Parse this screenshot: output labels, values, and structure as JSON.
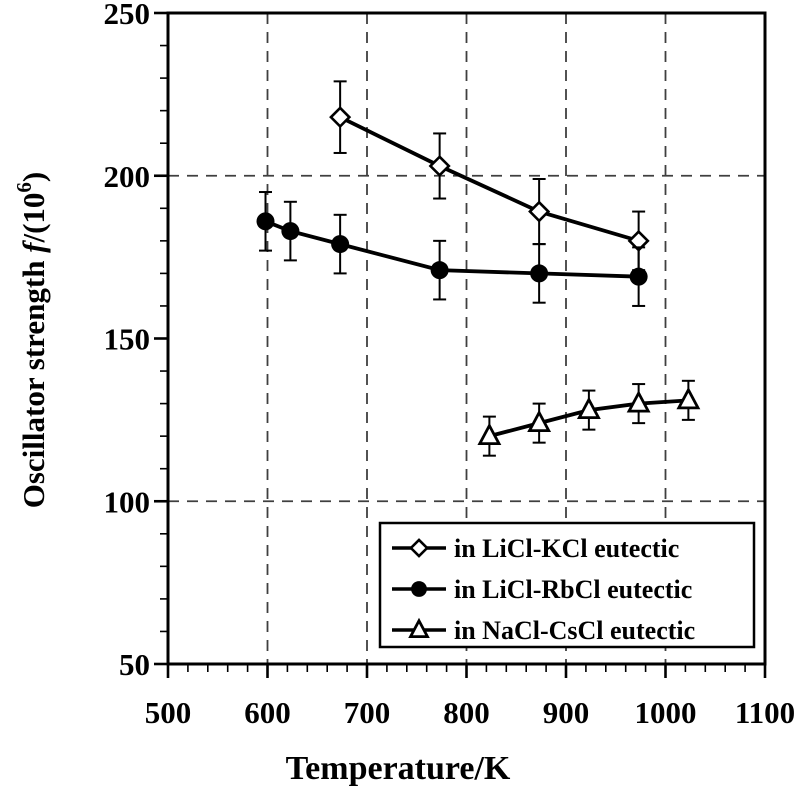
{
  "figure": {
    "background": "#ffffff",
    "ink_color": "#000000",
    "grid_color": "#3f3f3f",
    "marker_fill_open": "#ffffff",
    "legend_background": "#ffffff"
  },
  "chart_data": {
    "type": "line",
    "title": "",
    "xlabel": "Temperature/K",
    "ylabel": "Oscillator strength f/(10^6)",
    "ylabel_parts": [
      {
        "text": "Oscillator strength ",
        "style": "normal"
      },
      {
        "text": "f",
        "style": "italic"
      },
      {
        "text": "/(10",
        "style": "normal"
      },
      {
        "text": "6",
        "style": "superscript"
      },
      {
        "text": ")",
        "style": "normal"
      }
    ],
    "xlim": [
      500,
      1100
    ],
    "ylim": [
      50,
      250
    ],
    "xticks": [
      500,
      600,
      700,
      800,
      900,
      1000,
      1100
    ],
    "yticks": [
      50,
      100,
      150,
      200,
      250
    ],
    "x_minor_step": 20,
    "y_minor_step": 10,
    "grid": "dashed",
    "grid_vertical_at": [
      600,
      700,
      800,
      900,
      1000
    ],
    "grid_horizontal_at": [
      100,
      200
    ],
    "legend_position": "lower-right",
    "error_bars": "y",
    "series": [
      {
        "name": "in LiCl-KCl eutectic",
        "marker": "diamond-open",
        "points": [
          {
            "x": 673,
            "y": 218,
            "yerr": 11
          },
          {
            "x": 773,
            "y": 203,
            "yerr": 10
          },
          {
            "x": 873,
            "y": 189,
            "yerr": 10
          },
          {
            "x": 973,
            "y": 180,
            "yerr": 9
          }
        ]
      },
      {
        "name": "in LiCl-RbCl eutectic",
        "marker": "circle-filled",
        "points": [
          {
            "x": 598,
            "y": 186,
            "yerr": 9
          },
          {
            "x": 623,
            "y": 183,
            "yerr": 9
          },
          {
            "x": 673,
            "y": 179,
            "yerr": 9
          },
          {
            "x": 773,
            "y": 171,
            "yerr": 9
          },
          {
            "x": 873,
            "y": 170,
            "yerr": 9
          },
          {
            "x": 973,
            "y": 169,
            "yerr": 9
          }
        ]
      },
      {
        "name": "in NaCl-CsCl eutectic",
        "marker": "triangle-open",
        "points": [
          {
            "x": 823,
            "y": 120,
            "yerr": 6
          },
          {
            "x": 873,
            "y": 124,
            "yerr": 6
          },
          {
            "x": 923,
            "y": 128,
            "yerr": 6
          },
          {
            "x": 973,
            "y": 130,
            "yerr": 6
          },
          {
            "x": 1023,
            "y": 131,
            "yerr": 6
          }
        ]
      }
    ]
  }
}
